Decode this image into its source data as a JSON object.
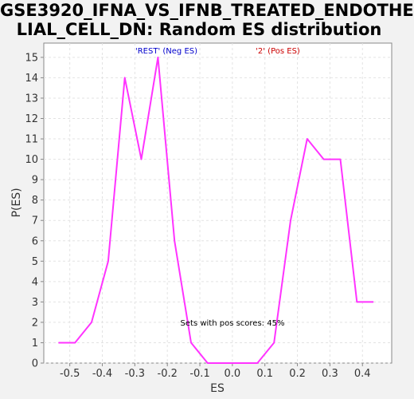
{
  "chart_data": {
    "type": "line",
    "title_line1": "GSE3920_IFNA_VS_IFNB_TREATED_ENDOTHE",
    "title_line2": "LIAL_CELL_DN: Random ES distribution",
    "xlabel": "ES",
    "ylabel": "P(ES)",
    "xlim": [
      -0.58,
      0.49
    ],
    "ylim": [
      0,
      15.7
    ],
    "x_ticks": [
      -0.5,
      -0.4,
      -0.3,
      -0.2,
      -0.1,
      0.0,
      0.1,
      0.2,
      0.3,
      0.4
    ],
    "x_tick_labels": [
      "-0.5",
      "-0.4",
      "-0.3",
      "-0.2",
      "-0.1",
      "0.0",
      "0.1",
      "0.2",
      "0.3",
      "0.4"
    ],
    "y_ticks": [
      0,
      1,
      2,
      3,
      4,
      5,
      6,
      7,
      8,
      9,
      10,
      11,
      12,
      13,
      14,
      15
    ],
    "y_tick_labels": [
      "0",
      "1",
      "2",
      "3",
      "4",
      "5",
      "6",
      "7",
      "8",
      "9",
      "10",
      "11",
      "12",
      "13",
      "14",
      "15"
    ],
    "grid": true,
    "series": [
      {
        "color": "#ff33ff",
        "x": [
          -0.535,
          -0.484,
          -0.433,
          -0.382,
          -0.331,
          -0.28,
          -0.229,
          -0.178,
          -0.127,
          -0.076,
          -0.025,
          0.026,
          0.077,
          0.128,
          0.179,
          0.23,
          0.281,
          0.332,
          0.383,
          0.434
        ],
        "y": [
          1,
          1,
          2,
          5,
          14,
          10,
          15,
          6,
          1,
          0,
          0,
          0,
          0,
          1,
          7,
          11,
          10,
          10,
          3,
          3
        ]
      }
    ],
    "legend": [
      {
        "label": "'REST' (Neg ES)",
        "color": "#0000cc"
      },
      {
        "label": "'2' (Pos ES)",
        "color": "#cc0000"
      }
    ],
    "annotation": "Sets with pos scores: 45%"
  }
}
